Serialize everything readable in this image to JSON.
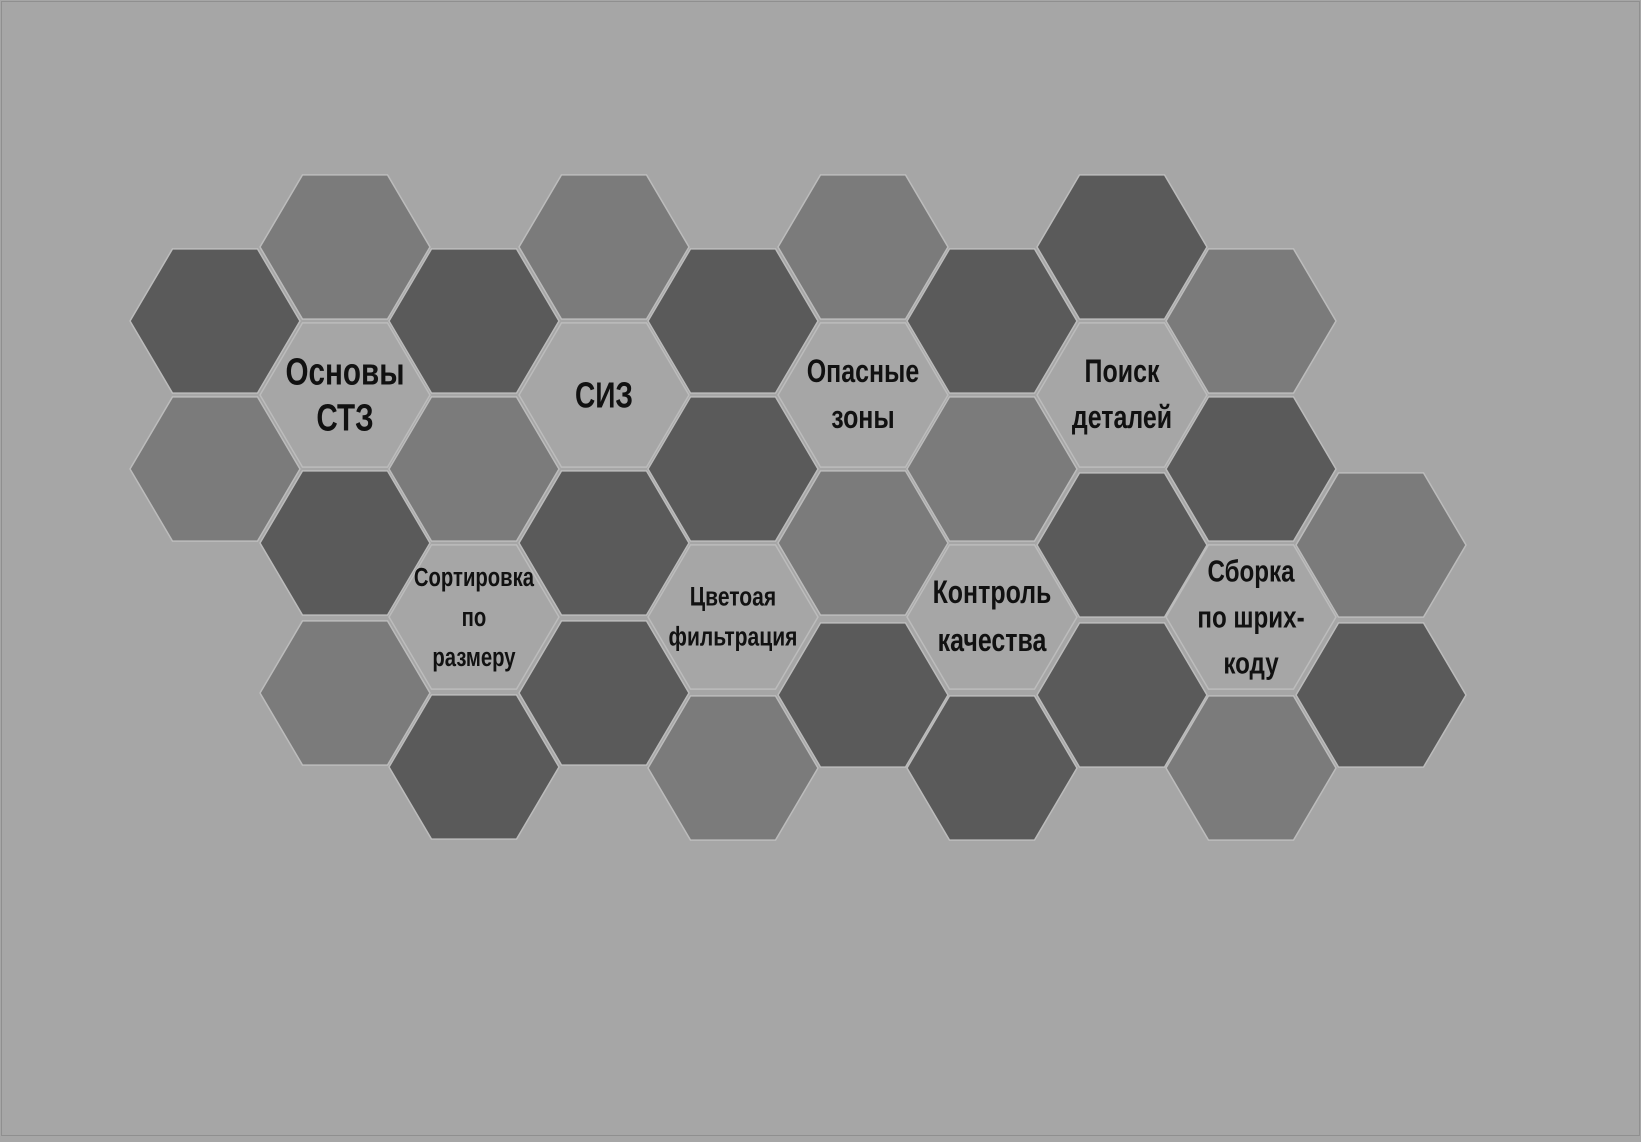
{
  "colors": {
    "background": "#a6a6a6",
    "hex_dark": "#5a5a5a",
    "hex_mid": "#7b7b7b",
    "hex_light": "#a6a6a6",
    "hex_stroke": "#bcbcbc",
    "label_text": "#111111"
  },
  "topics": [
    {
      "id": "osnovy-stz",
      "lines": [
        "Основы",
        "СТЗ"
      ]
    },
    {
      "id": "siz",
      "lines": [
        "СИЗ"
      ]
    },
    {
      "id": "opasnye-zony",
      "lines": [
        "Опасные",
        "зоны"
      ]
    },
    {
      "id": "poisk-detalej",
      "lines": [
        "Поиск",
        "деталей"
      ]
    },
    {
      "id": "sortirovka",
      "lines": [
        "Сортировка",
        "по",
        "размеру"
      ]
    },
    {
      "id": "tsvetovaya-filtratsiya",
      "lines": [
        "Цветоая",
        "фильтрация"
      ]
    },
    {
      "id": "kontrol-kachestva",
      "lines": [
        "Контроль",
        "качества"
      ]
    },
    {
      "id": "sborka-po-shtrikhkodu",
      "lines": [
        "Сборка",
        "по шрих-",
        "коду"
      ]
    }
  ]
}
